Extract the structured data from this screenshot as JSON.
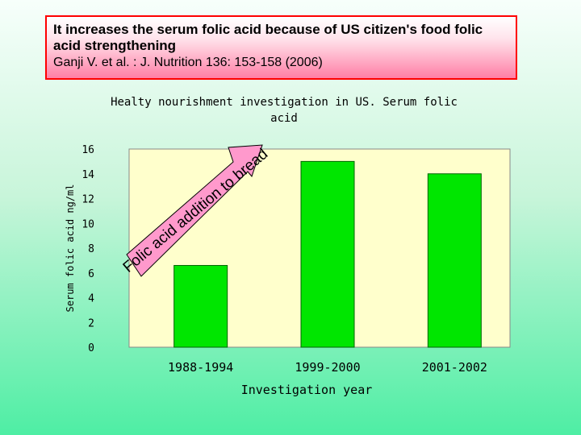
{
  "slide": {
    "title": "It increases the serum folic acid because of US citizen's food folic acid strengthening",
    "citation": "Ganji V. et al. : J. Nutrition 136: 153-158 (2006)"
  },
  "chart_data": {
    "type": "bar",
    "title_line1": "Healty nourishment investigation in US. Serum folic",
    "title_line2": "acid",
    "categories": [
      "1988-1994",
      "1999-2000",
      "2001-2002"
    ],
    "values": [
      6.6,
      15.0,
      14.0
    ],
    "xlabel": "Investigation year",
    "ylabel": "Serum folic acid ng/ml",
    "ylim": [
      0,
      16
    ],
    "yticks": [
      0,
      2,
      4,
      6,
      8,
      10,
      12,
      14,
      16
    ],
    "grid": false,
    "annotation": "Folic acid addition to bread",
    "colors": {
      "bar": "#00e600",
      "bar_edge": "#006400",
      "plot_bg": "#ffffcc",
      "arrow_fill": "#ff99cc"
    }
  }
}
